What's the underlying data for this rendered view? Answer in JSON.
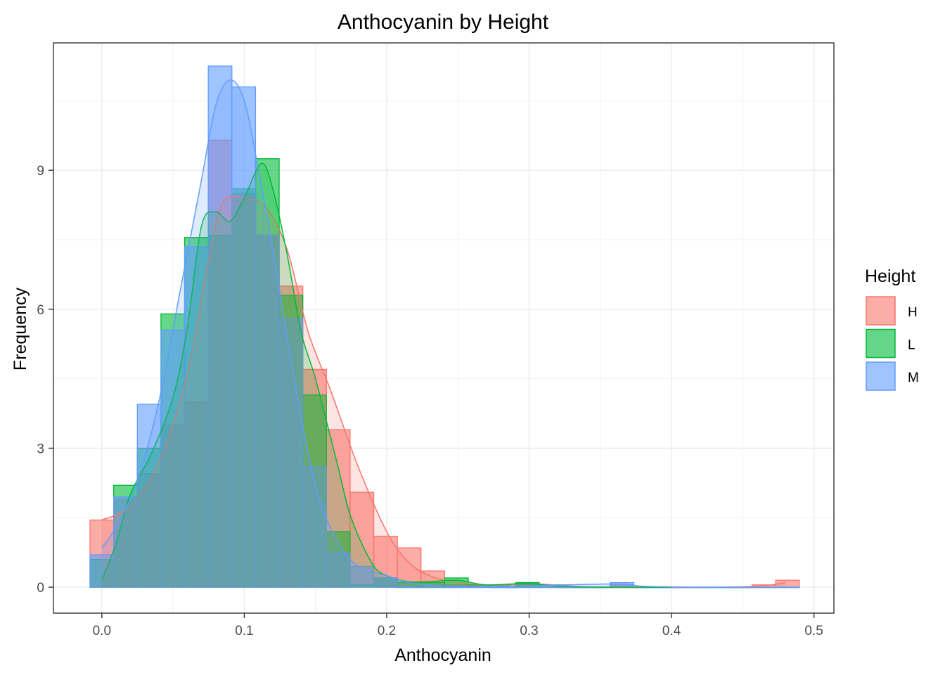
{
  "chart_data": {
    "type": "histogram",
    "title": "Anthocyanin by Height",
    "xlabel": "Anthocyanin",
    "ylabel": "Frequency",
    "xlim": [
      -0.034,
      0.514
    ],
    "ylim": [
      -0.56,
      11.75
    ],
    "x_ticks": [
      0.0,
      0.1,
      0.2,
      0.3,
      0.4,
      0.5
    ],
    "x_tick_labels": [
      "0.0",
      "0.1",
      "0.2",
      "0.3",
      "0.4",
      "0.5"
    ],
    "y_ticks": [
      0,
      3,
      6,
      9
    ],
    "y_tick_labels": [
      "0",
      "3",
      "6",
      "9"
    ],
    "grid": true,
    "bin_width": 0.0166,
    "bin_centers": [
      0.0,
      0.0166,
      0.0332,
      0.0498,
      0.0664,
      0.083,
      0.0996,
      0.1162,
      0.1328,
      0.1494,
      0.166,
      0.1826,
      0.1992,
      0.2158,
      0.2324,
      0.249,
      0.2656,
      0.2822,
      0.2988,
      0.3154,
      0.332,
      0.3486,
      0.3652,
      0.3818,
      0.3984,
      0.415,
      0.4316,
      0.4482,
      0.4648,
      0.4814
    ],
    "legend": {
      "title": "Height",
      "position": "right",
      "entries": [
        "H",
        "L",
        "M"
      ]
    },
    "series": [
      {
        "name": "H",
        "color": "#F8766D",
        "values": [
          1.45,
          1.9,
          2.45,
          3.5,
          4.0,
          9.65,
          8.5,
          7.6,
          6.5,
          4.7,
          3.4,
          2.05,
          1.1,
          0.85,
          0.35,
          0.05,
          0.05,
          0.0,
          0.05,
          0.0,
          0.0,
          0.0,
          0.05,
          0.0,
          0.0,
          0.0,
          0.0,
          0.0,
          0.05,
          0.15
        ],
        "density": [
          [
            0.0,
            1.45
          ],
          [
            0.02,
            1.75
          ],
          [
            0.04,
            2.7
          ],
          [
            0.06,
            4.6
          ],
          [
            0.075,
            7.1
          ],
          [
            0.085,
            8.3
          ],
          [
            0.1,
            8.4
          ],
          [
            0.115,
            8.2
          ],
          [
            0.13,
            7.3
          ],
          [
            0.145,
            5.5
          ],
          [
            0.16,
            4.3
          ],
          [
            0.18,
            2.6
          ],
          [
            0.2,
            1.2
          ],
          [
            0.215,
            0.55
          ],
          [
            0.23,
            0.25
          ],
          [
            0.25,
            0.1
          ],
          [
            0.28,
            0.04
          ],
          [
            0.3,
            0.08
          ],
          [
            0.34,
            0.01
          ],
          [
            0.4,
            0.0
          ],
          [
            0.45,
            0.01
          ],
          [
            0.47,
            0.05
          ],
          [
            0.48,
            0.1
          ]
        ]
      },
      {
        "name": "L",
        "color": "#00BA38",
        "values": [
          0.6,
          2.2,
          3.0,
          5.9,
          7.55,
          7.6,
          8.6,
          9.25,
          6.3,
          4.15,
          1.2,
          0.05,
          0.2,
          0.1,
          0.1,
          0.2,
          0.05,
          0.0,
          0.1,
          0.05,
          0.0,
          0.0,
          0.0,
          0.0,
          0.0,
          0.0,
          0.0,
          0.0,
          0.0,
          0.0
        ],
        "density": [
          [
            0.0,
            0.15
          ],
          [
            0.01,
            0.95
          ],
          [
            0.02,
            2.0
          ],
          [
            0.035,
            2.9
          ],
          [
            0.05,
            4.1
          ],
          [
            0.06,
            5.6
          ],
          [
            0.07,
            7.8
          ],
          [
            0.08,
            8.1
          ],
          [
            0.09,
            7.9
          ],
          [
            0.1,
            8.4
          ],
          [
            0.112,
            9.15
          ],
          [
            0.12,
            8.6
          ],
          [
            0.13,
            7.2
          ],
          [
            0.14,
            5.5
          ],
          [
            0.15,
            4.5
          ],
          [
            0.165,
            2.7
          ],
          [
            0.175,
            1.5
          ],
          [
            0.19,
            0.5
          ],
          [
            0.2,
            0.25
          ],
          [
            0.215,
            0.12
          ],
          [
            0.23,
            0.12
          ],
          [
            0.25,
            0.15
          ],
          [
            0.27,
            0.05
          ],
          [
            0.3,
            0.08
          ],
          [
            0.33,
            0.01
          ],
          [
            0.4,
            0.0
          ]
        ]
      },
      {
        "name": "M",
        "color": "#619CFF",
        "values": [
          0.7,
          1.95,
          3.95,
          5.55,
          7.35,
          11.25,
          10.8,
          7.6,
          5.8,
          2.6,
          0.75,
          0.45,
          0.2,
          0.0,
          0.0,
          0.0,
          0.0,
          0.0,
          0.0,
          0.0,
          0.0,
          0.0,
          0.1,
          0.0,
          0.0,
          0.0,
          0.0,
          0.0,
          0.0,
          0.0
        ],
        "density": [
          [
            0.0,
            0.85
          ],
          [
            0.01,
            1.3
          ],
          [
            0.025,
            2.3
          ],
          [
            0.04,
            4.0
          ],
          [
            0.055,
            6.4
          ],
          [
            0.07,
            8.8
          ],
          [
            0.08,
            10.4
          ],
          [
            0.09,
            10.95
          ],
          [
            0.1,
            10.5
          ],
          [
            0.11,
            9.0
          ],
          [
            0.12,
            7.3
          ],
          [
            0.135,
            4.5
          ],
          [
            0.15,
            2.2
          ],
          [
            0.165,
            1.0
          ],
          [
            0.18,
            0.45
          ],
          [
            0.2,
            0.25
          ],
          [
            0.215,
            0.1
          ],
          [
            0.24,
            0.03
          ],
          [
            0.28,
            0.02
          ],
          [
            0.36,
            0.07
          ],
          [
            0.38,
            0.02
          ],
          [
            0.42,
            0.0
          ],
          [
            0.48,
            0.0
          ]
        ]
      }
    ]
  }
}
